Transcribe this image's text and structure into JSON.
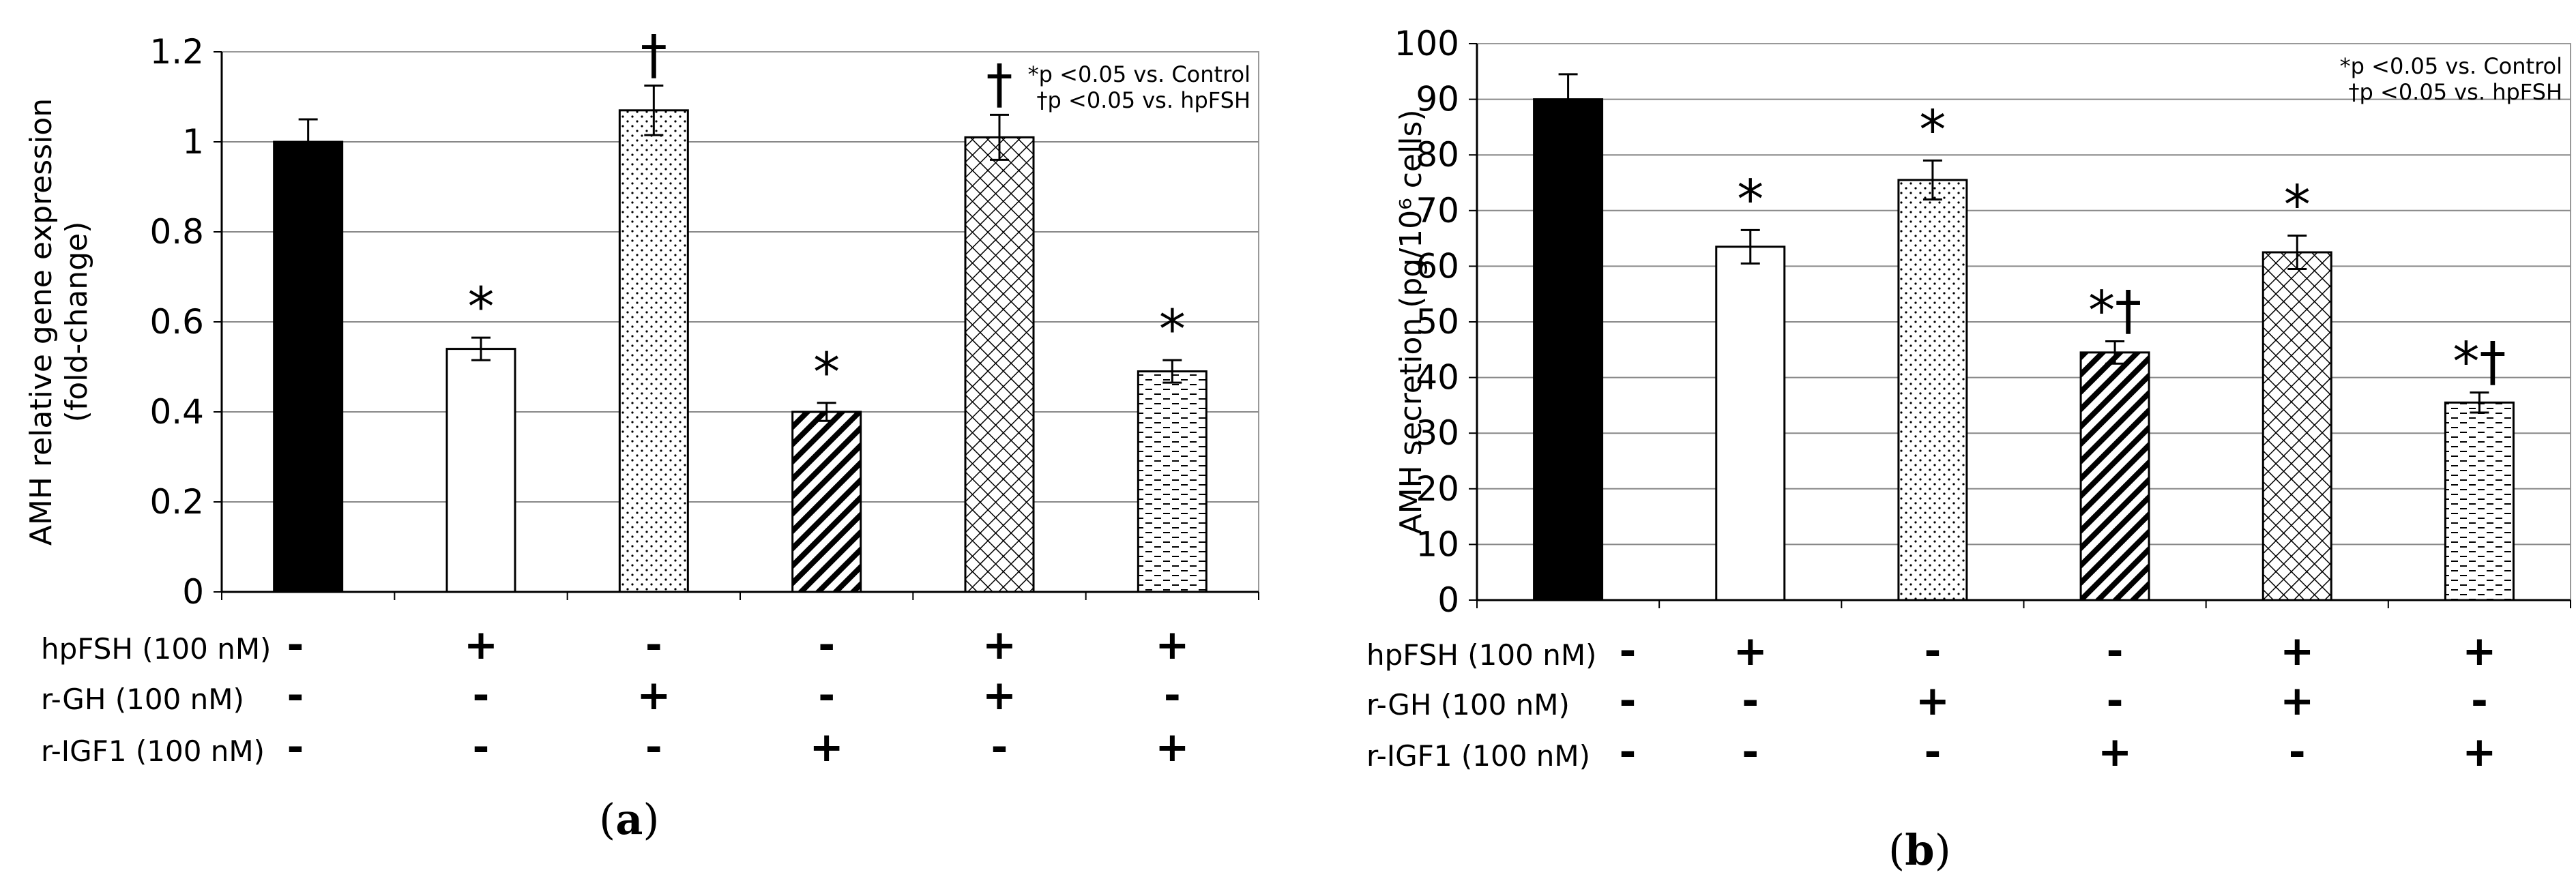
{
  "legend": {
    "star": "*p <0.05 vs. Control",
    "dagger": "†p <0.05 vs. hpFSH"
  },
  "rows": {
    "labels": [
      "hpFSH (100 nM)",
      "r-GH (100 nM)",
      "r-IGF1 (100 nM)"
    ],
    "signs": [
      [
        "-",
        "+",
        "-",
        "-",
        "+",
        "+"
      ],
      [
        "-",
        "-",
        "+",
        "-",
        "+",
        "-"
      ],
      [
        "-",
        "-",
        "-",
        "+",
        "-",
        "+"
      ]
    ]
  },
  "chart_data": [
    {
      "type": "bar",
      "panel_label": "a",
      "ylabel_lines": [
        "AMH relative gene expression",
        "(fold-change)"
      ],
      "ylim": [
        0,
        1.2
      ],
      "yticks": [
        "0",
        "0.2",
        "0.4",
        "0.6",
        "0.8",
        "1",
        "1.2"
      ],
      "values": [
        1.0,
        0.54,
        1.07,
        0.4,
        1.01,
        0.49
      ],
      "errors": [
        0.05,
        0.025,
        0.055,
        0.02,
        0.05,
        0.025
      ],
      "annotations": [
        "",
        "*",
        "†",
        "*",
        "†",
        "*"
      ],
      "patterns": [
        "solid-black",
        "white",
        "dots",
        "diagonal",
        "crosshatch",
        "dashes"
      ]
    },
    {
      "type": "bar",
      "panel_label": "b",
      "ylabel_lines": [
        "AMH secretion (pg/10⁶ cells)"
      ],
      "ylim": [
        0,
        100
      ],
      "yticks": [
        "0",
        "10",
        "20",
        "30",
        "40",
        "50",
        "60",
        "70",
        "80",
        "90",
        "100"
      ],
      "values": [
        90,
        63.5,
        75.5,
        44.5,
        62.5,
        35.5
      ],
      "errors": [
        4.5,
        3.0,
        3.5,
        2.0,
        3.0,
        1.8
      ],
      "annotations": [
        "",
        "*",
        "*",
        "*†",
        "*",
        "*†"
      ],
      "patterns": [
        "solid-black",
        "white",
        "dots",
        "diagonal",
        "crosshatch",
        "dashes"
      ]
    }
  ]
}
